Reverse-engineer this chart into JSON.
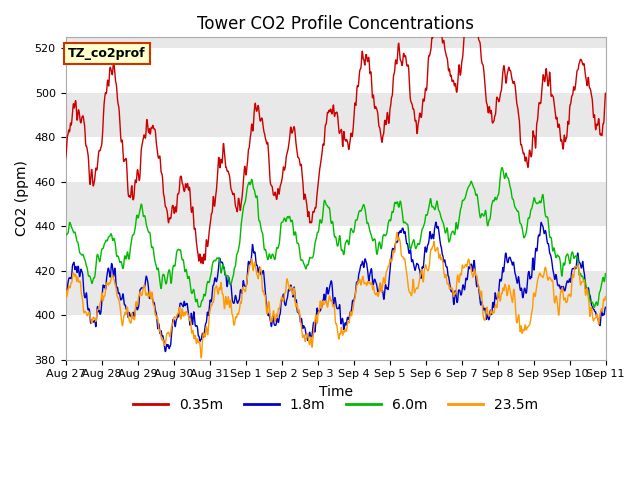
{
  "title": "Tower CO2 Profile Concentrations",
  "xlabel": "Time",
  "ylabel": "CO2 (ppm)",
  "ylim": [
    380,
    525
  ],
  "yticks": [
    380,
    400,
    420,
    440,
    460,
    480,
    500,
    520
  ],
  "label_box_text": "TZ_co2prof",
  "label_box_facecolor": "#ffffcc",
  "label_box_edgecolor": "#cc3300",
  "plot_bg_color": "#e8e8e8",
  "band_color": "#e8e8e8",
  "line_colors": [
    "#cc0000",
    "#0000cc",
    "#00bb00",
    "#ff9900"
  ],
  "line_labels": [
    "0.35m",
    "1.8m",
    "6.0m",
    "23.5m"
  ],
  "line_width": 1.0,
  "title_fontsize": 12,
  "axis_label_fontsize": 10,
  "tick_fontsize": 8,
  "legend_fontsize": 10
}
